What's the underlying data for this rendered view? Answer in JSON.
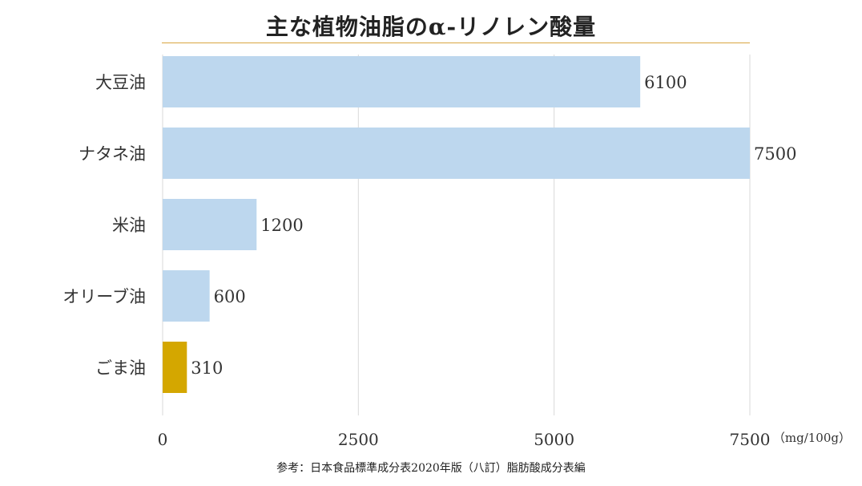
{
  "chart_data": {
    "type": "bar",
    "orientation": "horizontal",
    "title": "主な植物油脂のα-リノレン酸量",
    "unit_label": "（mg/100g）",
    "source_note": "参考：日本食品標準成分表2020年版（八訂）脂肪酸成分表編",
    "categories": [
      "大豆油",
      "ナタネ油",
      "米油",
      "オリーブ油",
      "ごま油"
    ],
    "values": [
      6100,
      7500,
      1200,
      600,
      310
    ],
    "data_labels": [
      "6100",
      "7500",
      "1200",
      "600",
      "310"
    ],
    "bar_colors": [
      "#bdd7ee",
      "#bdd7ee",
      "#bdd7ee",
      "#bdd7ee",
      "#d4a700"
    ],
    "xlim": [
      0,
      7500
    ],
    "x_ticks": [
      0,
      2500,
      5000,
      7500
    ],
    "x_tick_labels": [
      "0",
      "2500",
      "5000",
      "7500"
    ],
    "grid": "vertical",
    "grid_color": "#d9d9d9",
    "title_rule_color": "#d9a640",
    "legend": "none"
  }
}
